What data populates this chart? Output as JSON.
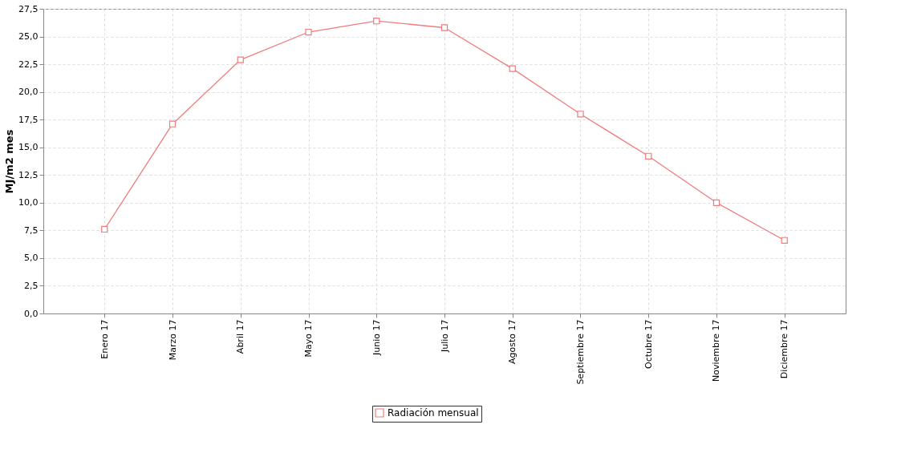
{
  "chart_data": {
    "type": "line",
    "ylabel": "MJ/m2 mes",
    "categories": [
      "Enero 17",
      "Marzo 17",
      "Abril 17",
      "Mayo 17",
      "Junio 17",
      "Julio 17",
      "Agosto 17",
      "Septiembre 17",
      "Octubre 17",
      "Noviembre 17",
      "Diciembre 17"
    ],
    "series": [
      {
        "name": "Radiación mensual",
        "color": "#f07c7c",
        "values": [
          7.6,
          17.1,
          22.9,
          25.4,
          26.4,
          25.8,
          22.1,
          18.0,
          14.2,
          10.0,
          6.6
        ]
      }
    ],
    "ylim": [
      0,
      27.5
    ],
    "yticks": [
      {
        "value": 0,
        "label": "0,0"
      },
      {
        "value": 2.5,
        "label": "2,5"
      },
      {
        "value": 5,
        "label": "5,0"
      },
      {
        "value": 7.5,
        "label": "7,5"
      },
      {
        "value": 10,
        "label": "10,0"
      },
      {
        "value": 12.5,
        "label": "12,5"
      },
      {
        "value": 15,
        "label": "15,0"
      },
      {
        "value": 17.5,
        "label": "17,5"
      },
      {
        "value": 20,
        "label": "20,0"
      },
      {
        "value": 22.5,
        "label": "22,5"
      },
      {
        "value": 25,
        "label": "25,0"
      },
      {
        "value": 27.5,
        "label": "27,5"
      }
    ],
    "grid": true,
    "legend": "bottom",
    "marker": "square",
    "line_style": "solid"
  }
}
